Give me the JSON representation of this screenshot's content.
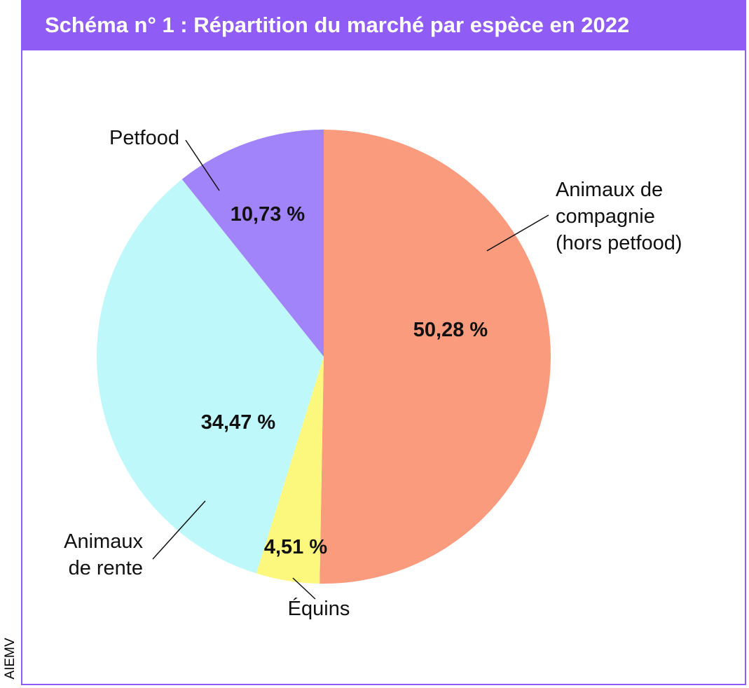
{
  "title": "Schéma n° 1 : Répartition du marché par espèce en 2022",
  "credit": "AIEMV",
  "chart_data": {
    "type": "pie",
    "title": "Schéma n° 1 : Répartition du marché par espèce en 2022",
    "slices": [
      {
        "label": "Animaux de compagnie (hors petfood)",
        "label_lines": [
          "Animaux de",
          "compagnie",
          "(hors petfood)"
        ],
        "value": 50.28,
        "value_label": "50,28 %",
        "color": "#fa9b7d"
      },
      {
        "label": "Équins",
        "label_lines": [
          "Équins"
        ],
        "value": 4.51,
        "value_label": "4,51 %",
        "color": "#fbf87d"
      },
      {
        "label": "Animaux de rente",
        "label_lines": [
          "Animaux",
          "de rente"
        ],
        "value": 34.47,
        "value_label": "34,47 %",
        "color": "#bff8fa"
      },
      {
        "label": "Petfood",
        "label_lines": [
          "Petfood"
        ],
        "value": 10.73,
        "value_label": "10,73 %",
        "color": "#a183fa"
      }
    ],
    "start": "12 o'clock",
    "direction": "clockwise"
  },
  "colors": {
    "frame": "#8f5cf5",
    "title_text": "#ffffff"
  }
}
